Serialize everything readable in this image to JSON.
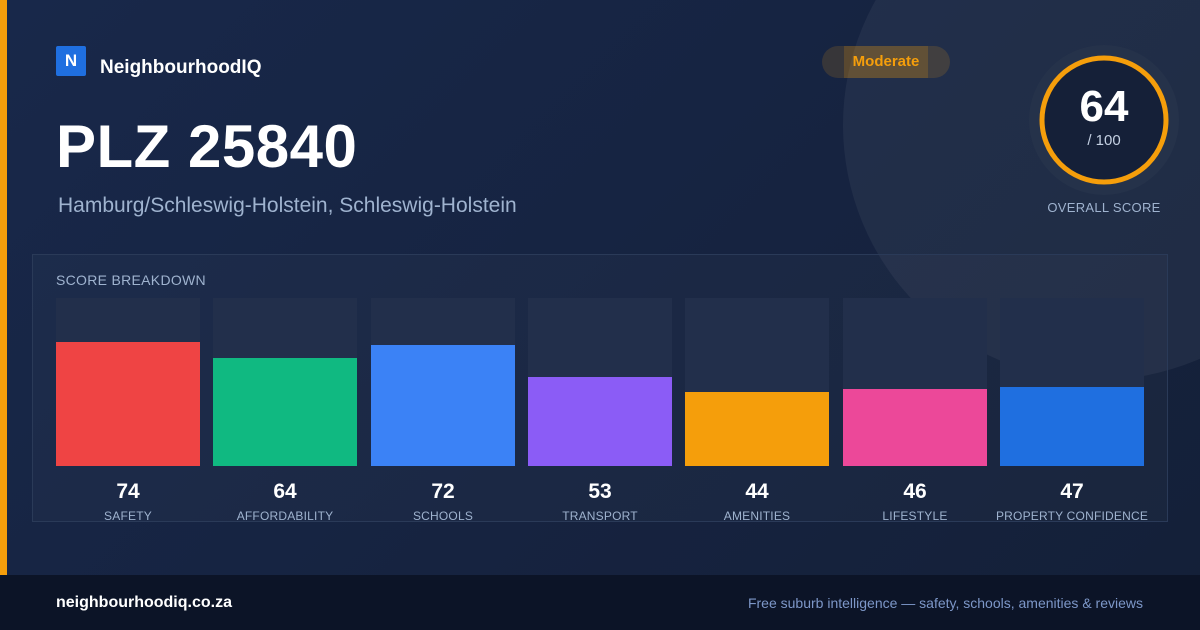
{
  "brand": {
    "logo_letter": "N",
    "name": "NeighbourhoodIQ",
    "accent_color": "#f59e0b",
    "logo_color": "#1f6fe0"
  },
  "badge": {
    "label": "Moderate",
    "color": "#f59e0b"
  },
  "header": {
    "title": "PLZ 25840",
    "subtitle": "Hamburg/Schleswig-Holstein, Schleswig-Holstein"
  },
  "overall": {
    "score": "64",
    "max_label": "/ 100",
    "fraction": 0.64,
    "caption": "OVERALL SCORE",
    "ring_color": "#f59e0b"
  },
  "breakdown": {
    "label": "SCORE BREAKDOWN"
  },
  "chart_data": {
    "type": "bar",
    "title": "SCORE BREAKDOWN",
    "categories": [
      "SAFETY",
      "AFFORDABILITY",
      "SCHOOLS",
      "TRANSPORT",
      "AMENITIES",
      "LIFESTYLE",
      "PROPERTY CONFIDENCE"
    ],
    "values": [
      74,
      64,
      72,
      53,
      44,
      46,
      47
    ],
    "colors": [
      "#ef4444",
      "#10b981",
      "#3b82f6",
      "#8b5cf6",
      "#f59e0b",
      "#ec4899",
      "#1f6fe0"
    ],
    "ylim": [
      0,
      100
    ],
    "grid": false,
    "legend": "none"
  },
  "footer": {
    "url": "neighbourhoodiq.co.za",
    "tagline": "Free suburb intelligence — safety, schools, amenities & reviews"
  }
}
